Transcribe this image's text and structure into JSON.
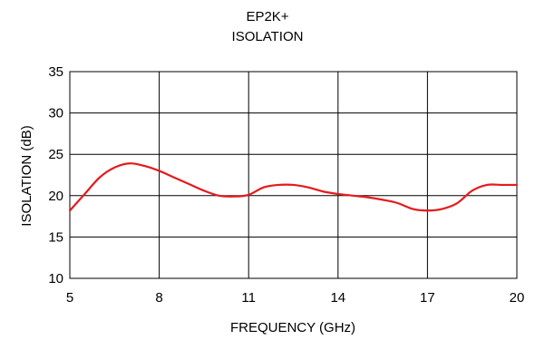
{
  "chart_data": {
    "type": "line",
    "title": "EP2K+",
    "subtitle": "ISOLATION",
    "xlabel": "FREQUENCY (GHz)",
    "ylabel": "ISOLATION (dB)",
    "xlim": [
      5,
      20
    ],
    "ylim": [
      10,
      35
    ],
    "xticks": [
      5,
      8,
      11,
      14,
      17,
      20
    ],
    "yticks": [
      10,
      15,
      20,
      25,
      30,
      35
    ],
    "grid": true,
    "legend": "none",
    "series": [
      {
        "color": "#e41a1c",
        "x": [
          5,
          5.5,
          6,
          6.5,
          7,
          7.5,
          8,
          8.5,
          9,
          9.5,
          10,
          10.5,
          11,
          11.5,
          12,
          12.5,
          13,
          13.5,
          14,
          14.5,
          15,
          15.5,
          16,
          16.5,
          17,
          17.5,
          18,
          18.5,
          19,
          19.5,
          20
        ],
        "y": [
          18.2,
          20.2,
          22.2,
          23.4,
          23.9,
          23.6,
          23.0,
          22.2,
          21.4,
          20.6,
          20.0,
          19.9,
          20.1,
          21.0,
          21.3,
          21.3,
          21.0,
          20.5,
          20.2,
          20.0,
          19.8,
          19.5,
          19.1,
          18.4,
          18.2,
          18.4,
          19.1,
          20.6,
          21.3,
          21.3,
          21.3
        ]
      }
    ]
  }
}
